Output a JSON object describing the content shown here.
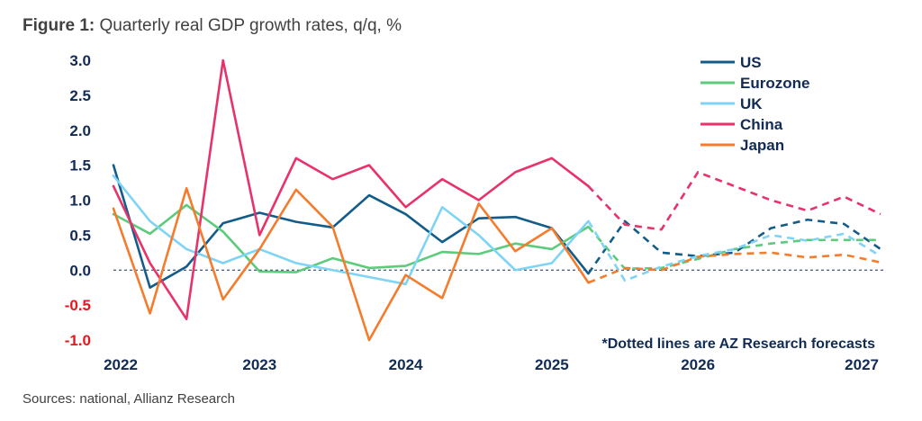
{
  "figure_label": "Figure 1:",
  "figure_title": "Quarterly real GDP growth rates, q/q, %",
  "source": "Sources: national, Allianz Research",
  "colors": {
    "axis_text": "#122B54",
    "negative_text": "#E3171C",
    "zero_line": "#122B54"
  },
  "chart_data": {
    "type": "line",
    "title": "Quarterly real GDP growth rates, q/q, %",
    "xlabel": "",
    "ylabel": "",
    "ylim": [
      -1.0,
      3.0
    ],
    "yticks": [
      "3.0",
      "2.5",
      "2.0",
      "1.5",
      "1.0",
      "0.5",
      "0.0",
      "-0.5",
      "-1.0"
    ],
    "xtick_labels": [
      "2022",
      "2023",
      "2024",
      "2025",
      "2026",
      "2027"
    ],
    "x_start": "2022 Q1",
    "x_end": "2027 Q2",
    "note": "*Dotted lines are AZ Research forecasts",
    "legend_position": "top-right",
    "series": [
      {
        "name": "US",
        "color": "#135C89",
        "actual": [
          1.5,
          -0.25,
          0.05,
          0.67,
          0.82,
          0.69,
          0.61,
          1.07,
          0.8,
          0.4,
          0.74,
          0.76,
          0.6,
          -0.05
        ],
        "forecast_start": 13,
        "forecast": [
          -0.05,
          0.7,
          0.25,
          0.2,
          0.25,
          0.6,
          0.72,
          0.66,
          0.3
        ]
      },
      {
        "name": "Eurozone",
        "color": "#5CCB7C",
        "actual": [
          0.8,
          0.52,
          0.93,
          0.55,
          -0.02,
          -0.03,
          0.17,
          0.03,
          0.06,
          0.26,
          0.23,
          0.38,
          0.3,
          0.62
        ],
        "forecast_start": 13,
        "forecast": [
          0.62,
          0.02,
          0.03,
          0.16,
          0.3,
          0.38,
          0.43,
          0.43,
          0.43
        ]
      },
      {
        "name": "UK",
        "color": "#7FD4F6",
        "actual": [
          1.35,
          0.7,
          0.3,
          0.1,
          0.3,
          0.1,
          0.0,
          -0.1,
          -0.2,
          0.9,
          0.5,
          0.0,
          0.1,
          0.7
        ],
        "forecast_start": 13,
        "forecast": [
          0.7,
          -0.15,
          0.05,
          0.2,
          0.3,
          0.5,
          0.42,
          0.52,
          0.2
        ]
      },
      {
        "name": "China",
        "color": "#E8326A",
        "actual": [
          1.2,
          0.1,
          -0.7,
          3.0,
          0.5,
          1.6,
          1.3,
          1.5,
          0.9,
          1.3,
          1.0,
          1.4,
          1.6,
          1.2
        ],
        "forecast_start": 13,
        "forecast": [
          1.2,
          0.65,
          0.58,
          1.4,
          1.2,
          1.0,
          0.85,
          1.05,
          0.8
        ]
      },
      {
        "name": "Japan",
        "color": "#F47C2C",
        "actual": [
          0.88,
          -0.62,
          1.17,
          -0.42,
          0.3,
          1.15,
          0.62,
          -1.0,
          -0.07,
          -0.4,
          0.95,
          0.27,
          0.6,
          -0.18
        ],
        "forecast_start": 13,
        "forecast": [
          -0.18,
          0.03,
          0.0,
          0.19,
          0.23,
          0.25,
          0.18,
          0.22,
          0.11
        ]
      }
    ]
  }
}
